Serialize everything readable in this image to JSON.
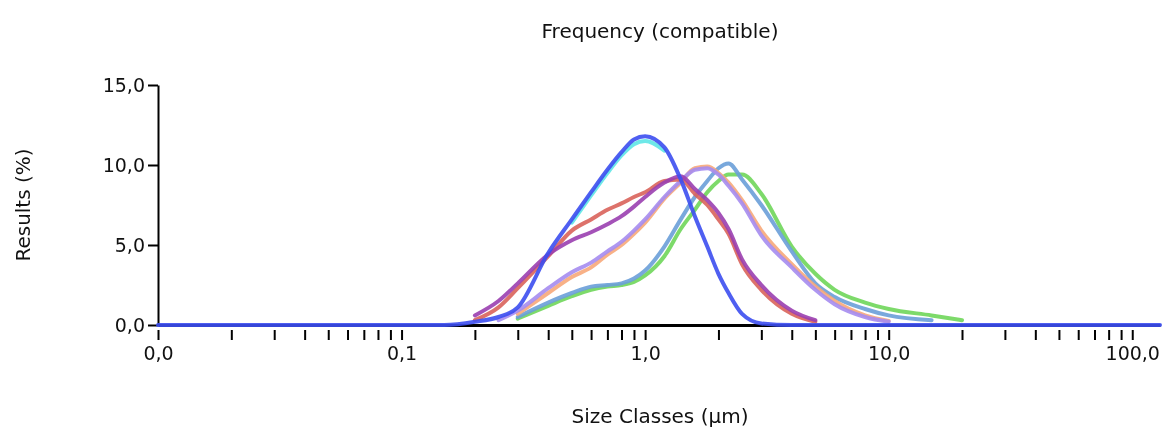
{
  "chart_data": {
    "type": "line",
    "title": "Frequency (compatible)",
    "xlabel": "Size Classes (µm)",
    "ylabel": "Results (%)",
    "log": "x",
    "grid": false,
    "marker": "none",
    "line_style": "solid",
    "xlim": [
      0.01,
      130
    ],
    "xticks": [
      {
        "value": 0.01,
        "label": "0,0"
      },
      {
        "value": 0.02,
        "label": null
      },
      {
        "value": 0.03,
        "label": null
      },
      {
        "value": 0.04,
        "label": null
      },
      {
        "value": 0.05,
        "label": null
      },
      {
        "value": 0.06,
        "label": null
      },
      {
        "value": 0.07,
        "label": null
      },
      {
        "value": 0.08,
        "label": null
      },
      {
        "value": 0.09,
        "label": null
      },
      {
        "value": 0.1,
        "label": "0,1"
      },
      {
        "value": 0.2,
        "label": null
      },
      {
        "value": 0.3,
        "label": null
      },
      {
        "value": 0.4,
        "label": null
      },
      {
        "value": 0.5,
        "label": null
      },
      {
        "value": 0.6,
        "label": null
      },
      {
        "value": 0.7,
        "label": null
      },
      {
        "value": 0.8,
        "label": null
      },
      {
        "value": 0.9,
        "label": null
      },
      {
        "value": 1,
        "label": "1,0"
      },
      {
        "value": 2,
        "label": null
      },
      {
        "value": 3,
        "label": null
      },
      {
        "value": 4,
        "label": null
      },
      {
        "value": 5,
        "label": null
      },
      {
        "value": 6,
        "label": null
      },
      {
        "value": 7,
        "label": null
      },
      {
        "value": 8,
        "label": null
      },
      {
        "value": 9,
        "label": null
      },
      {
        "value": 10,
        "label": "10,0"
      },
      {
        "value": 20,
        "label": null
      },
      {
        "value": 30,
        "label": null
      },
      {
        "value": 40,
        "label": null
      },
      {
        "value": 50,
        "label": null
      },
      {
        "value": 60,
        "label": null
      },
      {
        "value": 70,
        "label": null
      },
      {
        "value": 80,
        "label": null
      },
      {
        "value": 90,
        "label": null
      },
      {
        "value": 100,
        "label": "100,0"
      }
    ],
    "ylim": [
      0,
      15
    ],
    "yticks": [
      {
        "value": 0,
        "label": "0,0"
      },
      {
        "value": 5,
        "label": "5,0"
      },
      {
        "value": 10,
        "label": "10,0"
      },
      {
        "value": 15,
        "label": "15,0"
      }
    ],
    "x": [
      0.01,
      0.15,
      0.2,
      0.25,
      0.3,
      0.4,
      0.5,
      0.6,
      0.7,
      0.8,
      0.9,
      1,
      1.2,
      1.4,
      1.6,
      1.8,
      2,
      2.2,
      2.5,
      3,
      4,
      5,
      6,
      8,
      10,
      15,
      20,
      30,
      40,
      130
    ],
    "series": [
      {
        "color": "#6fd65a",
        "values": [
          null,
          null,
          null,
          null,
          0.4,
          1.2,
          1.8,
          2.2,
          2.4,
          2.5,
          2.7,
          3.1,
          4.3,
          6.0,
          7.2,
          8.3,
          9.0,
          9.4,
          9.4,
          8.2,
          4.9,
          3.2,
          2.2,
          1.4,
          1.0,
          0.6,
          0.3,
          null,
          null,
          null
        ]
      },
      {
        "color": "#6a9fd8",
        "values": [
          null,
          null,
          null,
          null,
          0.5,
          1.4,
          2.0,
          2.4,
          2.5,
          2.6,
          2.9,
          3.4,
          4.9,
          6.6,
          8.0,
          9.0,
          9.8,
          10.1,
          9.1,
          7.5,
          4.6,
          2.6,
          1.75,
          1.0,
          0.6,
          0.3,
          null,
          null,
          null,
          null
        ]
      },
      {
        "color": "#f7a97a",
        "values": [
          null,
          null,
          null,
          null,
          0.7,
          2.0,
          3.0,
          3.6,
          4.4,
          5.0,
          5.7,
          6.4,
          7.9,
          8.9,
          9.8,
          9.9,
          9.5,
          8.9,
          7.8,
          5.9,
          3.8,
          2.4,
          1.5,
          0.6,
          0.25,
          null,
          null,
          null,
          null,
          null
        ]
      },
      {
        "color": "#a58cf0",
        "values": [
          null,
          null,
          null,
          0.3,
          0.9,
          2.3,
          3.3,
          3.9,
          4.6,
          5.2,
          5.9,
          6.6,
          8.0,
          9.0,
          9.7,
          9.8,
          9.4,
          8.7,
          7.6,
          5.6,
          3.6,
          2.2,
          1.3,
          0.5,
          0.2,
          null,
          null,
          null,
          null,
          null
        ]
      },
      {
        "color": "#d9635b",
        "values": [
          null,
          null,
          0.3,
          1.1,
          2.3,
          4.3,
          5.9,
          6.6,
          7.2,
          7.6,
          8.0,
          8.3,
          9.0,
          9.1,
          8.2,
          7.5,
          6.6,
          5.7,
          3.8,
          2.2,
          0.7,
          0.2,
          null,
          null,
          null,
          null,
          null,
          null,
          null,
          null
        ]
      },
      {
        "color": "#9a3fb0",
        "values": [
          null,
          null,
          0.6,
          1.5,
          2.6,
          4.4,
          5.3,
          5.8,
          6.3,
          6.8,
          7.4,
          8.0,
          8.9,
          9.3,
          8.5,
          7.8,
          7.0,
          6.0,
          4.1,
          2.5,
          0.9,
          0.3,
          null,
          null,
          null,
          null,
          null,
          null,
          null,
          null
        ]
      },
      {
        "color": "#5ee6e6",
        "values": [
          null,
          null,
          null,
          null,
          null,
          null,
          6.4,
          8.1,
          9.5,
          10.6,
          11.3,
          11.5,
          10.9,
          null,
          null,
          null,
          null,
          null,
          null,
          null,
          null,
          null,
          null,
          null,
          null,
          null,
          null,
          null,
          null,
          null
        ]
      },
      {
        "color": "#3c4ef0",
        "values": [
          0,
          0,
          0.2,
          0.5,
          1.1,
          4.5,
          6.6,
          8.3,
          9.7,
          10.8,
          11.6,
          11.8,
          11.1,
          9.1,
          6.8,
          4.9,
          3.2,
          2.0,
          0.7,
          0.1,
          0,
          0,
          0,
          0,
          0,
          0,
          0,
          0,
          0,
          0
        ]
      }
    ]
  }
}
